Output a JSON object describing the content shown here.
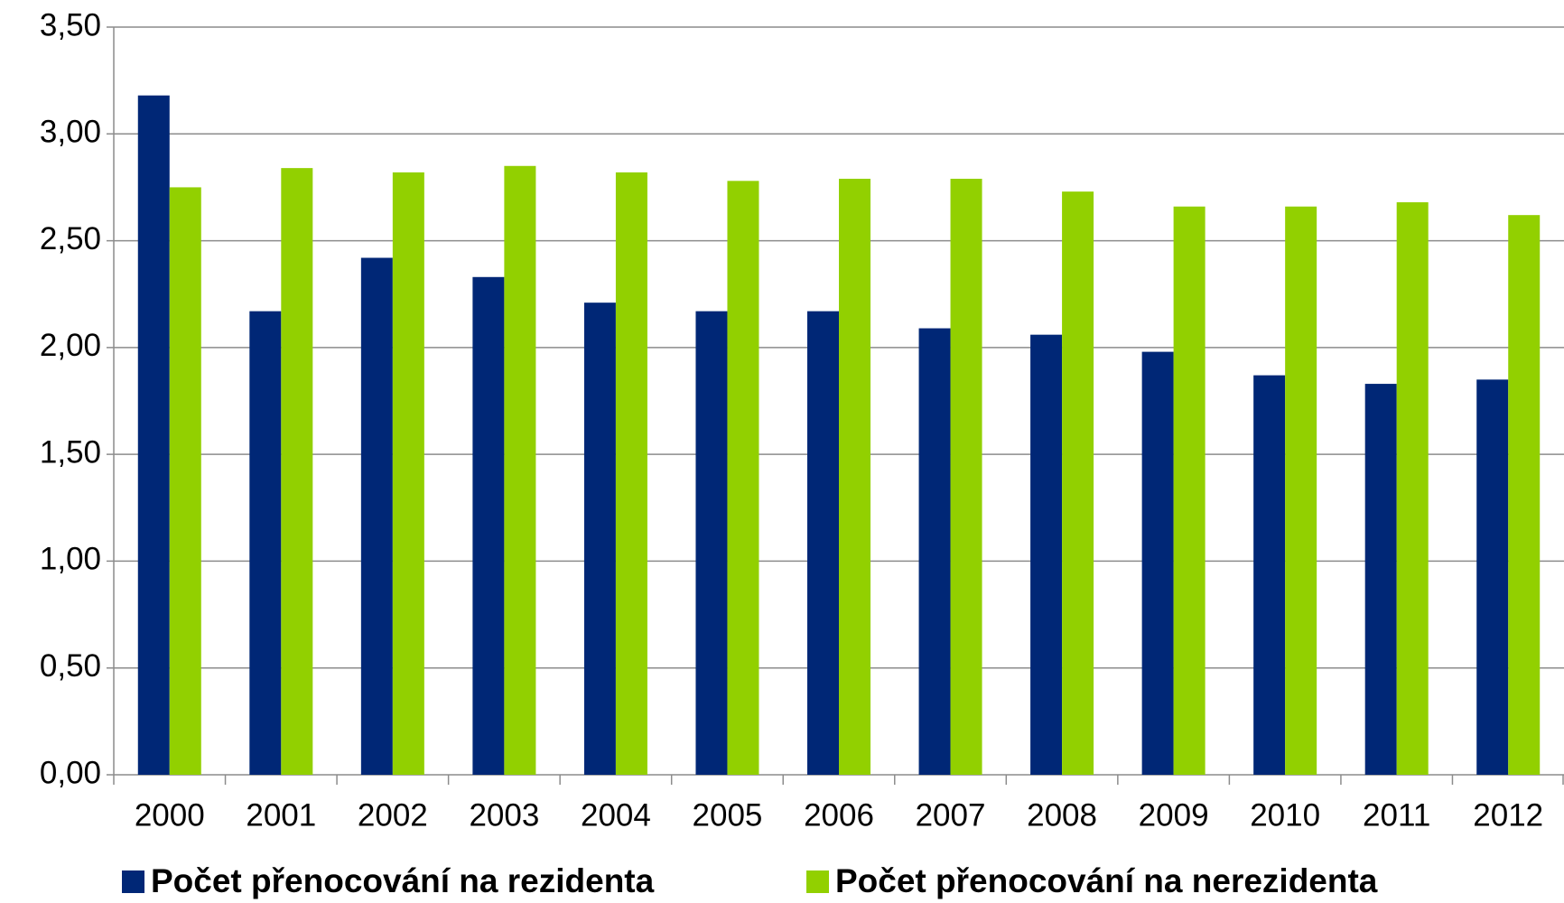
{
  "chart_data": {
    "type": "bar",
    "categories": [
      "2000",
      "2001",
      "2002",
      "2003",
      "2004",
      "2005",
      "2006",
      "2007",
      "2008",
      "2009",
      "2010",
      "2011",
      "2012"
    ],
    "series": [
      {
        "name": "Počet přenocování na rezidenta",
        "color": "#002776",
        "values": [
          3.18,
          2.17,
          2.42,
          2.33,
          2.21,
          2.17,
          2.17,
          2.09,
          2.06,
          1.98,
          1.87,
          1.83,
          1.85
        ]
      },
      {
        "name": "Počet přenocování na nerezidenta",
        "color": "#92d000",
        "values": [
          2.75,
          2.84,
          2.82,
          2.85,
          2.82,
          2.78,
          2.79,
          2.79,
          2.73,
          2.66,
          2.66,
          2.68,
          2.62
        ]
      }
    ],
    "ylim": [
      0,
      3.5
    ],
    "yticks": [
      {
        "value": 0,
        "label": "0,00"
      },
      {
        "value": 0.5,
        "label": "0,50"
      },
      {
        "value": 1,
        "label": "1,00"
      },
      {
        "value": 1.5,
        "label": "1,50"
      },
      {
        "value": 2,
        "label": "2,00"
      },
      {
        "value": 2.5,
        "label": "2,50"
      },
      {
        "value": 3,
        "label": "3,00"
      },
      {
        "value": 3.5,
        "label": "3,50"
      }
    ],
    "grid": true,
    "legend": "bottom"
  }
}
